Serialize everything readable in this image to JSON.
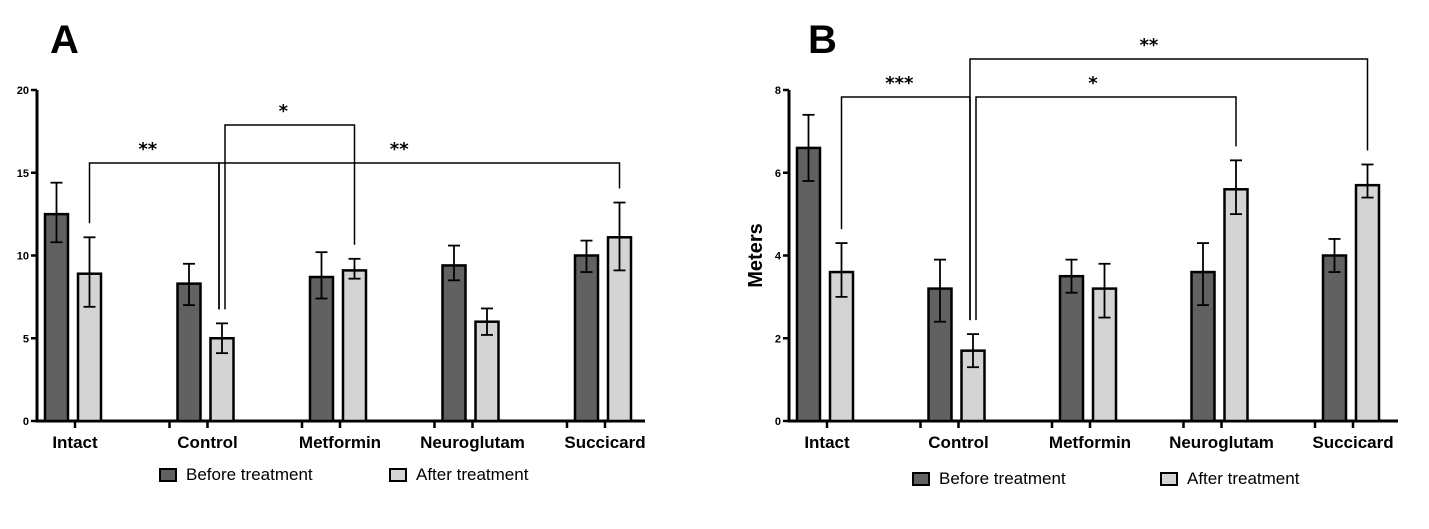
{
  "chart_data": [
    {
      "type": "bar",
      "panel": "A",
      "title": "",
      "xlabel": "",
      "ylabel": "",
      "ylim": [
        0,
        20
      ],
      "yticks": [
        0,
        5,
        10,
        15,
        20
      ],
      "categories": [
        "Intact",
        "Control",
        "Metformin",
        "Neuroglutam",
        "Succicard"
      ],
      "series": [
        {
          "name": "Before treatment",
          "color": "#616161",
          "values": [
            12.5,
            8.3,
            8.7,
            9.4,
            10.0
          ],
          "error_high": [
            14.4,
            9.5,
            10.2,
            10.6,
            10.9
          ],
          "error_low": [
            10.8,
            7.0,
            7.4,
            8.5,
            9.0
          ]
        },
        {
          "name": "After treatment",
          "color": "#d4d4d4",
          "values": [
            8.9,
            5.0,
            9.1,
            6.0,
            11.1
          ],
          "error_high": [
            11.1,
            5.9,
            9.8,
            6.8,
            13.2
          ],
          "error_low": [
            6.9,
            4.1,
            8.6,
            5.2,
            9.1
          ]
        }
      ],
      "significance": [
        {
          "from": "Intact",
          "to": "Control",
          "series": "After treatment",
          "label": "**"
        },
        {
          "from": "Control",
          "to": "Metformin",
          "series": "After treatment",
          "label": "*"
        },
        {
          "from": "Control",
          "to": "Succicard",
          "series": "After treatment",
          "label": "**"
        }
      ],
      "legend": "bottom",
      "grid": false
    },
    {
      "type": "bar",
      "panel": "B",
      "title": "",
      "xlabel": "",
      "ylabel": "Meters",
      "ylim": [
        0,
        8
      ],
      "yticks": [
        0,
        2,
        4,
        6,
        8
      ],
      "categories": [
        "Intact",
        "Control",
        "Metformin",
        "Neuroglutam",
        "Succicard"
      ],
      "series": [
        {
          "name": "Before treatment",
          "color": "#616161",
          "values": [
            6.6,
            3.2,
            3.5,
            3.6,
            4.0
          ],
          "error_high": [
            7.4,
            3.9,
            3.9,
            4.3,
            4.4
          ],
          "error_low": [
            5.8,
            2.4,
            3.1,
            2.8,
            3.6
          ]
        },
        {
          "name": "After treatment",
          "color": "#d4d4d4",
          "values": [
            3.6,
            1.7,
            3.2,
            5.6,
            5.7
          ],
          "error_high": [
            4.3,
            2.1,
            3.8,
            6.3,
            6.2
          ],
          "error_low": [
            3.0,
            1.3,
            2.5,
            5.0,
            5.4
          ]
        }
      ],
      "significance": [
        {
          "from": "Intact",
          "to": "Control",
          "series": "After treatment",
          "label": "***"
        },
        {
          "from": "Control",
          "to": "Neuroglutam",
          "series": "After treatment",
          "label": "*"
        },
        {
          "from": "Control",
          "to": "Succicard",
          "series": "After treatment",
          "label": "**"
        }
      ],
      "legend": "bottom",
      "grid": false
    }
  ]
}
